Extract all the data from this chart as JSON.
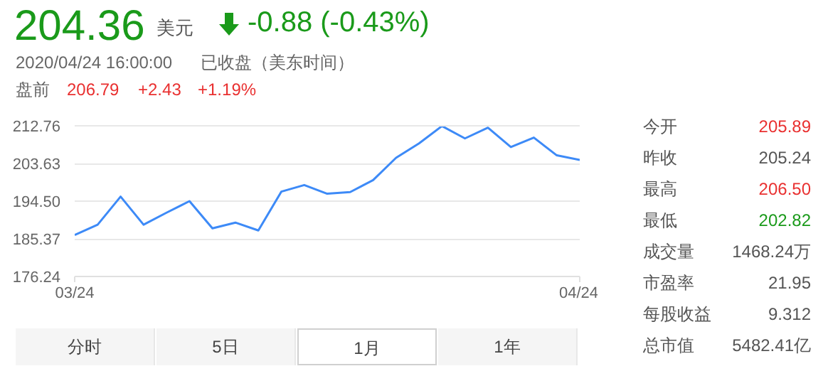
{
  "chart_data": {
    "type": "line",
    "categories": [
      "03/24",
      null,
      null,
      null,
      null,
      null,
      null,
      null,
      null,
      null,
      null,
      null,
      null,
      null,
      null,
      null,
      null,
      null,
      null,
      null,
      null,
      null,
      "04/24"
    ],
    "series": [
      {
        "color": "#3d8af7",
        "values": [
          186.3,
          188.8,
          195.6,
          188.8,
          191.7,
          194.5,
          187.9,
          189.3,
          187.4,
          196.8,
          198.4,
          196.3,
          196.7,
          199.6,
          205.0,
          208.5,
          212.7,
          209.7,
          212.3,
          207.6,
          209.9,
          205.6,
          204.5
        ]
      }
    ],
    "ylim": [
      176.24,
      212.76
    ],
    "yticks": [
      176.24,
      185.37,
      {
        "value": 194.5,
        "label": "194.50"
      },
      203.63,
      212.76
    ],
    "grid": "y",
    "marker": "none",
    "line_style": "solid",
    "annotations": [
      "204.36",
      "美元",
      "-0.88 (-0.43%)",
      "2020/04/24 16:00:00",
      "已收盘（美东时间）",
      "盘前",
      "206.79",
      "+2.43",
      "+1.19%",
      "今开",
      "205.89",
      "昨收",
      "205.24",
      "最高",
      "206.50",
      "最低",
      "202.82",
      "成交量",
      "1468.24万",
      "市盈率",
      "21.95",
      "每股收益",
      "9.312",
      "总市值",
      "5482.41亿",
      "分时",
      "5日",
      "1月",
      "1年"
    ]
  }
}
